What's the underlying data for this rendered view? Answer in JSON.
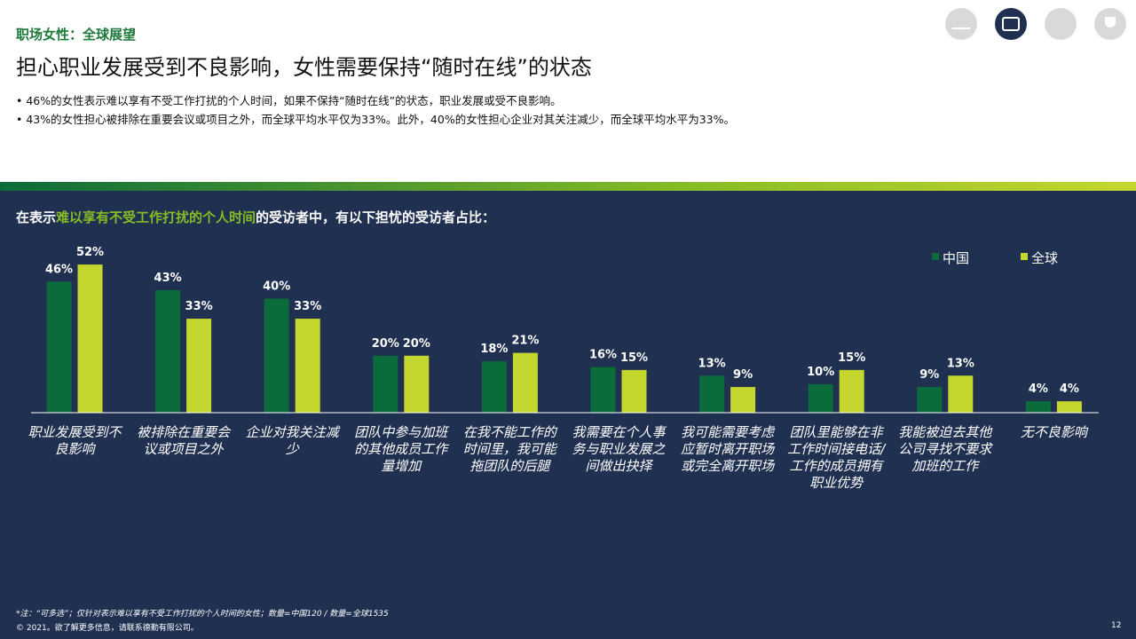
{
  "header": {
    "section": "职场女性：全球展望",
    "title": "担心职业发展受到不良影响，女性需要保持“随时在线”的状态",
    "bullets": [
      "46%的女性表示难以享有不受工作打扰的个人时间，如果不保持“随时在线”的状态，职业发展或受不良影响。",
      "43%的女性担心被排除在重要会议或项目之外，而全球平均水平仅为33%。此外，40%的女性担心企业对其关注减少，而全球平均水平为33%。"
    ]
  },
  "chart_data": {
    "type": "bar",
    "title_parts": [
      "在表示",
      "难以享有不受工作打扰的个人时间",
      "的受访者中，有以下担忧的受访者占比："
    ],
    "categories": [
      "职业发展受到不良影响",
      "被排除在重要会议或项目之外",
      "企业对我关注减少",
      "团队中参与加班的其他成员工作量增加",
      "在我不能工作的时间里，我可能拖团队的后腿",
      "我需要在个人事务与职业发展之间做出抉择",
      "我可能需要考虑应暂时离开职场或完全离开职场",
      "团队里能够在非工作时间接电话/工作的成员拥有职业优势",
      "我能被迫去其他公司寻找不要求加班的工作",
      "无不良影响"
    ],
    "series": [
      {
        "name": "中国",
        "color": "#0b6b3a",
        "values": [
          46,
          43,
          40,
          20,
          18,
          16,
          13,
          10,
          9,
          4
        ],
        "value_labels": [
          "46%",
          "43%",
          "40%",
          "20%",
          "18%",
          "16%",
          "13%",
          "10%",
          "9%",
          "4%"
        ]
      },
      {
        "name": "全球",
        "color": "#c5d72e",
        "values": [
          52,
          33,
          33,
          20,
          21,
          15,
          9,
          15,
          13,
          4
        ],
        "value_labels": [
          "52%",
          "33%",
          "33%",
          "20%",
          "21%",
          "15%",
          "9%",
          "15%",
          "13%",
          "4%"
        ]
      }
    ],
    "legend": "top-right"
  },
  "footer": {
    "note": "*注：“可多选”；仅针对表示难以享有不受工作打扰的个人时间的女性；数量=中国120 / 数量=全球1535",
    "copyright": "© 2021。欲了解更多信息，请联系德勤有限公司。",
    "page": 12
  }
}
